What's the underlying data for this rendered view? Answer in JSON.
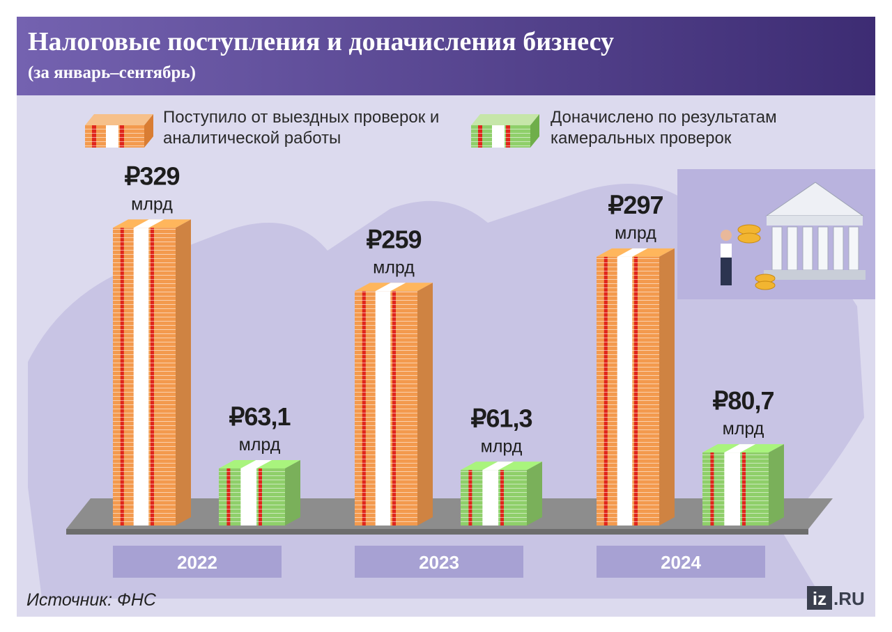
{
  "chart_data": {
    "type": "bar",
    "title": "Налоговые поступления и доначисления бизнесу",
    "subtitle": "(за январь–сентябрь)",
    "categories": [
      "2022",
      "2023",
      "2024"
    ],
    "unit": "млрд",
    "series": [
      {
        "name": "Поступило от выездных проверок и аналитической работы",
        "color": "#f39a4e",
        "values": [
          329,
          259,
          297
        ],
        "value_labels": [
          "₽329",
          "₽259",
          "₽297"
        ]
      },
      {
        "name": "Доначислено по результатам камеральных проверок",
        "color": "#8fcf6a",
        "values": [
          63.1,
          61.3,
          80.7
        ],
        "value_labels": [
          "₽63,1",
          "₽61,3",
          "₽80,7"
        ]
      }
    ],
    "source": "Источник: ФНС",
    "logo": {
      "mark": "iz",
      "domain": ".RU"
    }
  }
}
